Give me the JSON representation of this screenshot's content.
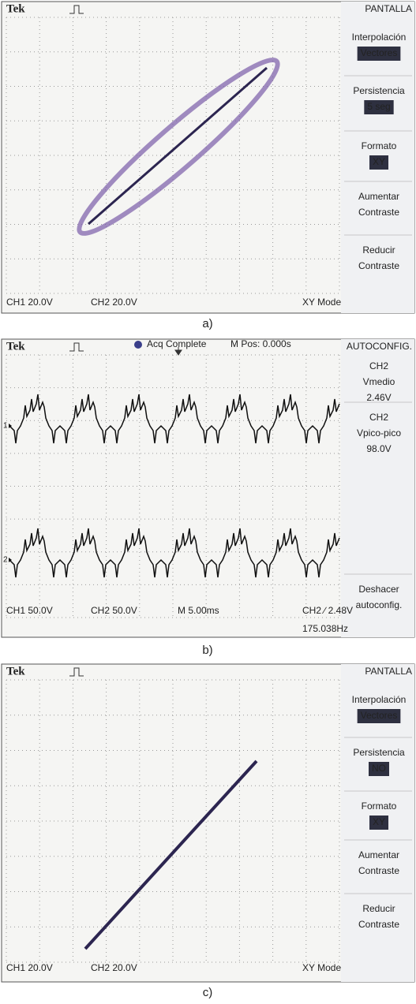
{
  "panels": [
    {
      "brand": "Tek",
      "menu_title": "PANTALLA",
      "menu": [
        {
          "lines": [
            "Interpolación"
          ],
          "value": "Vectores"
        },
        {
          "lines": [
            "Persistencia"
          ],
          "value": "5 seg"
        },
        {
          "lines": [
            "Formato"
          ],
          "value": "XY"
        },
        {
          "lines": [
            "Aumentar",
            "Contraste"
          ]
        },
        {
          "lines": [
            "Reducir",
            "Contraste"
          ]
        }
      ],
      "footer": [
        "CH1 20.0V",
        "CH2 20.0V",
        "XY Mode"
      ],
      "caption": "a)"
    },
    {
      "brand": "Tek",
      "status": [
        "Acq Complete",
        "M Pos: 0.000s"
      ],
      "menu_title": "AUTOCONFIG.",
      "menu": [
        {
          "lines": [
            "CH2",
            "Vmedio",
            "2.46V"
          ]
        },
        {
          "lines": [
            "CH2",
            "Vpico-pico",
            "98.0V"
          ]
        },
        {
          "lines": [
            "Deshacer",
            "autoconfig."
          ]
        }
      ],
      "markers": [
        "1",
        "2"
      ],
      "footer": [
        "CH1 50.0V",
        "CH2 50.0V",
        "M 5.00ms",
        "CH2 ∕ 2.48V",
        "175.038Hz"
      ],
      "caption": "b)"
    },
    {
      "brand": "Tek",
      "menu_title": "PANTALLA",
      "menu": [
        {
          "lines": [
            "Interpolación"
          ],
          "value": "Vectores"
        },
        {
          "lines": [
            "Persistencia"
          ],
          "value": "NO"
        },
        {
          "lines": [
            "Formato"
          ],
          "value": "XY"
        },
        {
          "lines": [
            "Aumentar",
            "Contraste"
          ]
        },
        {
          "lines": [
            "Reducir",
            "Contraste"
          ]
        }
      ],
      "footer": [
        "CH1 20.0V",
        "CH2 20.0V",
        "XY Mode"
      ],
      "caption": "c)"
    }
  ]
}
